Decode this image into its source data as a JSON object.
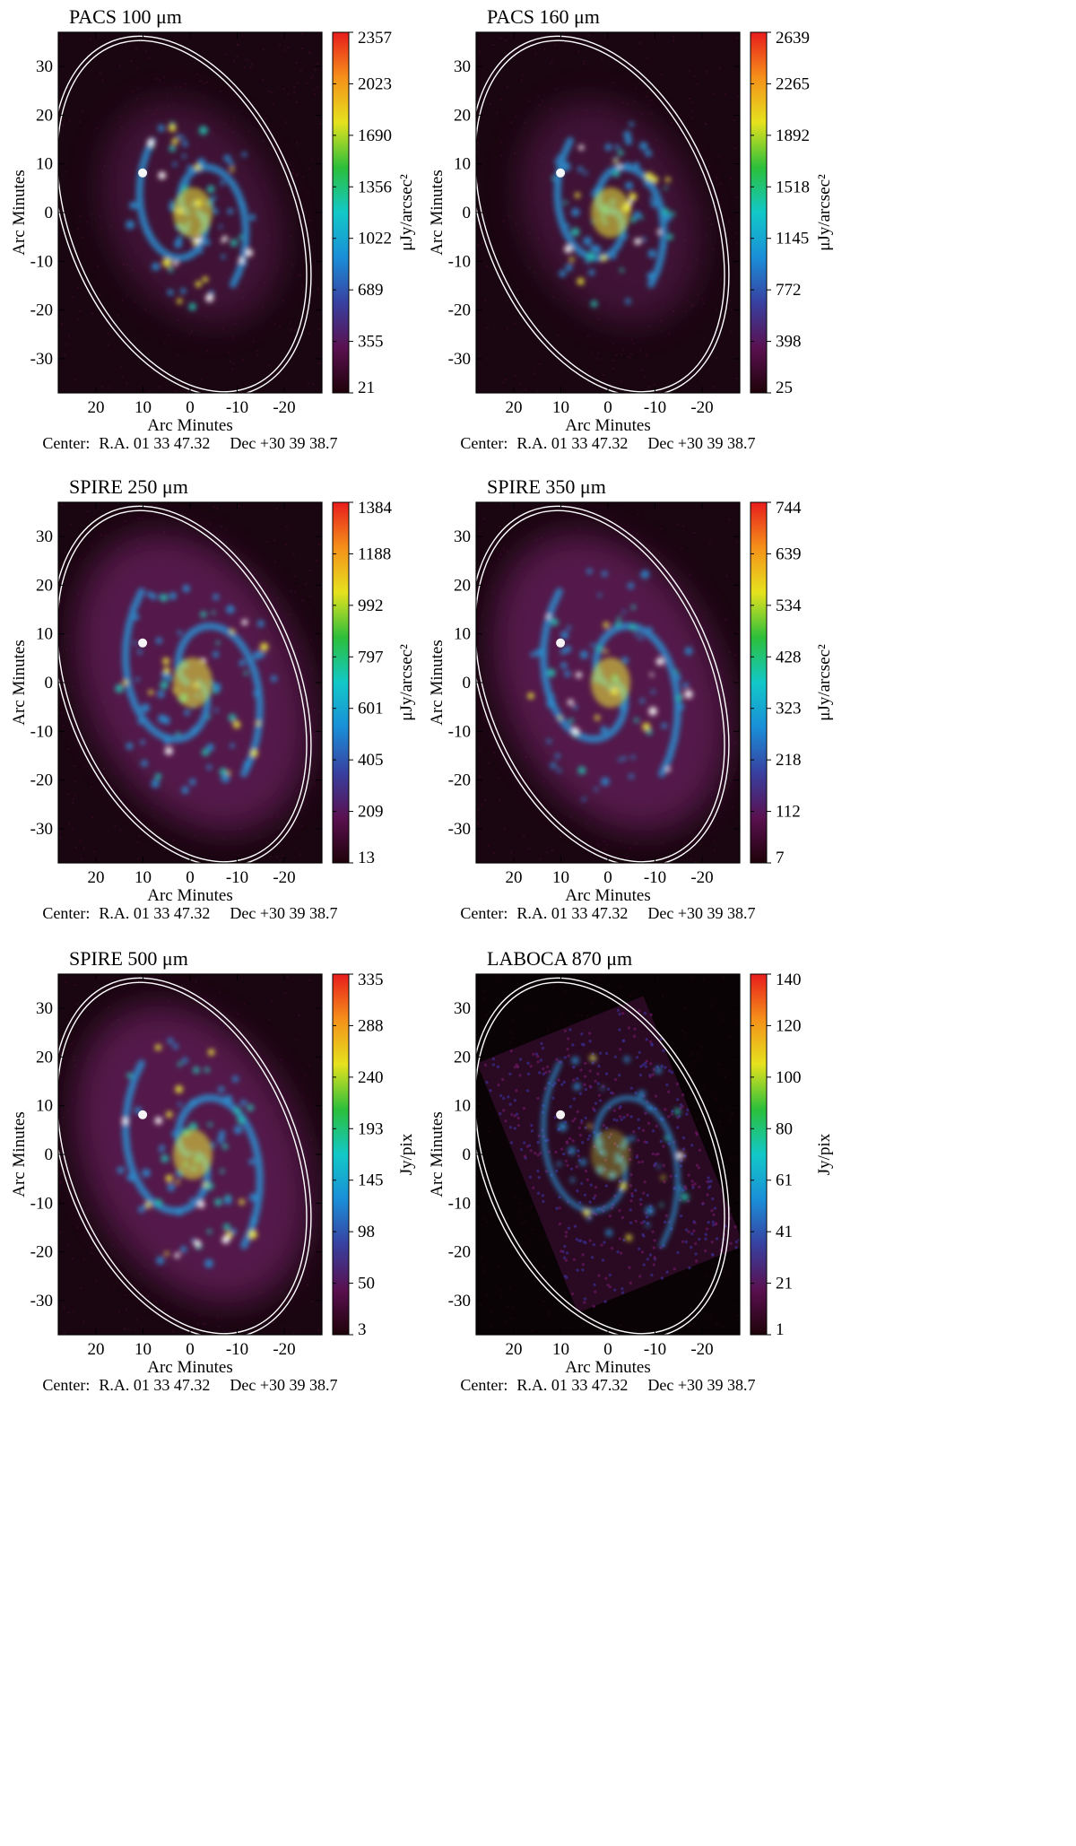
{
  "figure": {
    "axis_labels": {
      "x": "Arc Minutes",
      "y": "Arc Minutes"
    },
    "center_text": {
      "prefix": "Center:",
      "ra": "R.A. 01 33 47.32",
      "dec": "Dec +30 39 38.7"
    },
    "x_ticks": [
      "20",
      "10",
      "0",
      "-10",
      "-20"
    ],
    "y_ticks": [
      "30",
      "20",
      "10",
      "0",
      "-10",
      "-20",
      "-30"
    ],
    "colors": {
      "map_background": "#1a0610",
      "disk": "#5e1a55",
      "arm": "#2a8fd0",
      "core": "#f1f13a",
      "ellipse": "#ffffff"
    },
    "colormap_stops": [
      "#1e0208",
      "#5a1050",
      "#3840a0",
      "#1a8ed8",
      "#12c8c8",
      "#2cbf3a",
      "#e6e21e",
      "#f5901a",
      "#e81c1c"
    ]
  },
  "panels": [
    {
      "title": "PACS 100 μm",
      "unit": "μJy/arcsec²",
      "colorbar_ticks": [
        "2357",
        "2023",
        "1690",
        "1356",
        "1022",
        "689",
        "355",
        "21"
      ],
      "style": "pacs"
    },
    {
      "title": "PACS 160 μm",
      "unit": "μJy/arcsec²",
      "colorbar_ticks": [
        "2639",
        "2265",
        "1892",
        "1518",
        "1145",
        "772",
        "398",
        "25"
      ],
      "style": "pacs"
    },
    {
      "title": "SPIRE 250 μm",
      "unit": "μJy/arcsec²",
      "colorbar_ticks": [
        "1384",
        "1188",
        "992",
        "797",
        "601",
        "405",
        "209",
        "13"
      ],
      "style": "spire"
    },
    {
      "title": "SPIRE 350 μm",
      "unit": "μJy/arcsec²",
      "colorbar_ticks": [
        "744",
        "639",
        "534",
        "428",
        "323",
        "218",
        "112",
        "7"
      ],
      "style": "spire"
    },
    {
      "title": "SPIRE 500 μm",
      "unit": "Jy/pix",
      "colorbar_ticks": [
        "335",
        "288",
        "240",
        "193",
        "145",
        "98",
        "50",
        "3"
      ],
      "style": "spire500"
    },
    {
      "title": "LABOCA 870 μm",
      "unit": "Jy/pix",
      "colorbar_ticks": [
        "140",
        "120",
        "100",
        "80",
        "61",
        "41",
        "21",
        "1"
      ],
      "style": "laboca"
    }
  ]
}
